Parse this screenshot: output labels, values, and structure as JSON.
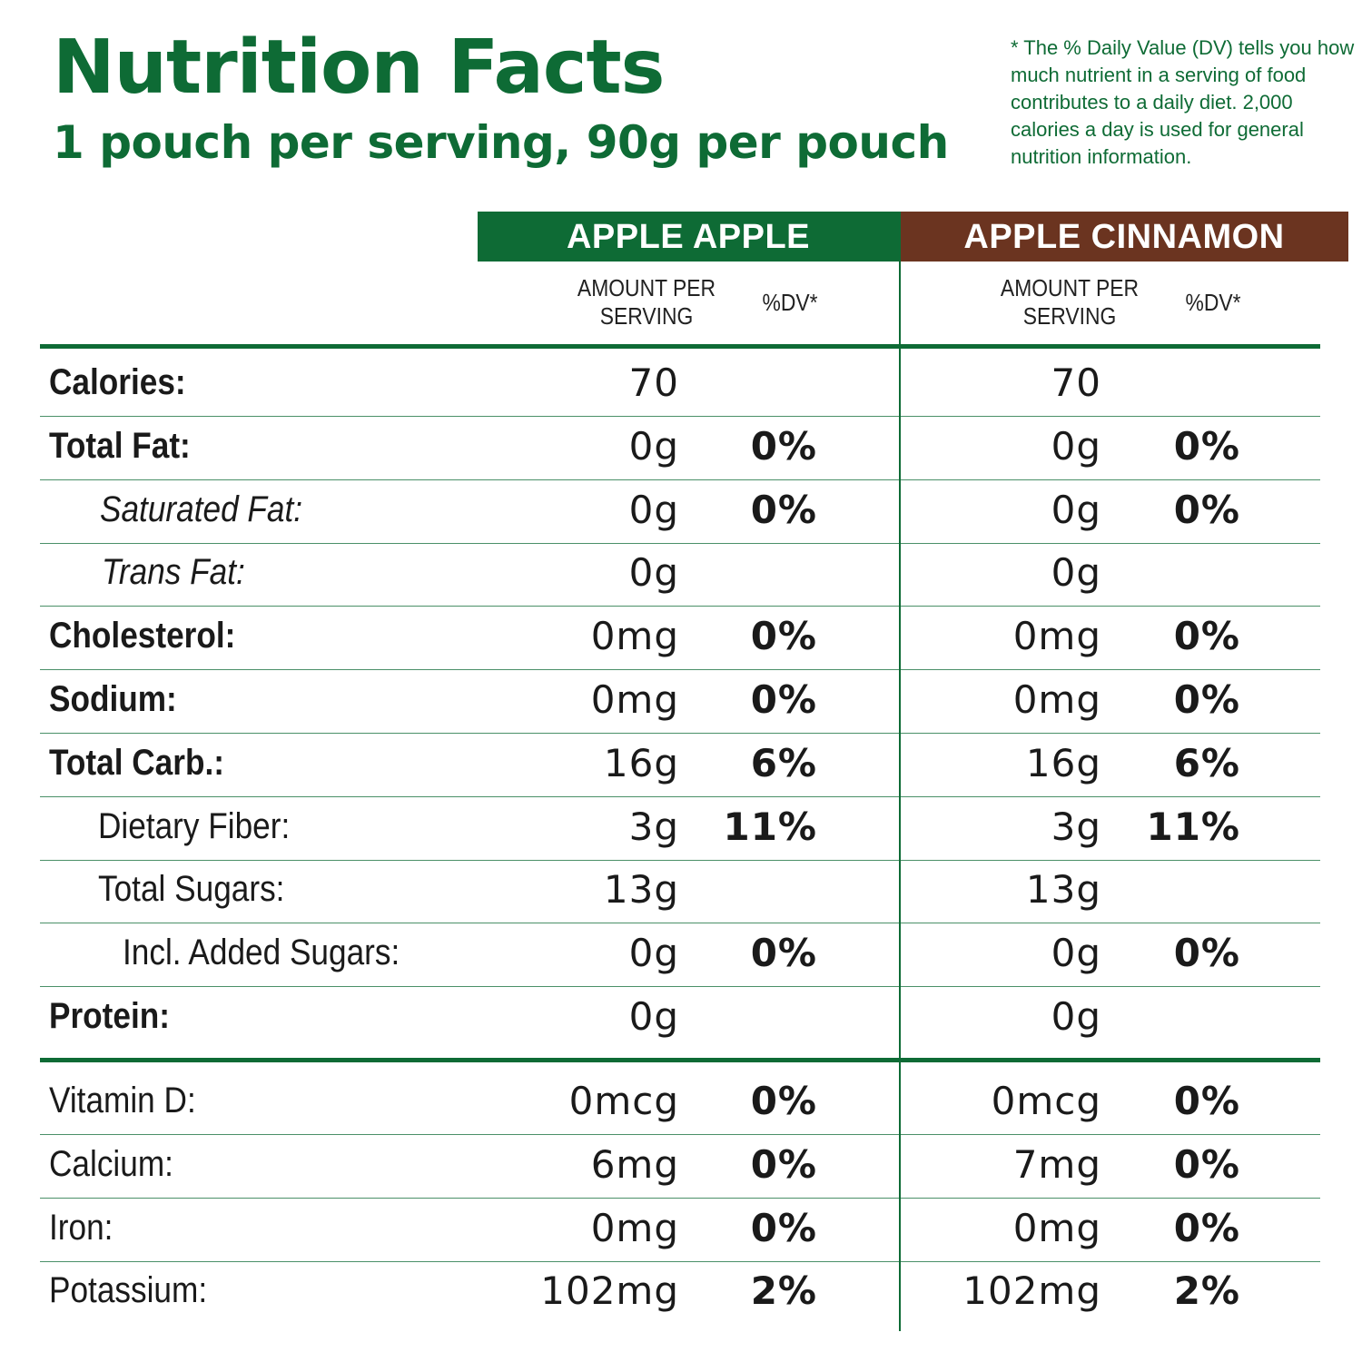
{
  "header": {
    "title": "Nutrition Facts",
    "subtitle": "1 pouch per serving, 90g per pouch",
    "footnote": "* The % Daily Value (DV) tells you how much nutrient in a serving of food contributes to a daily diet. 2,000 calories a day is used for general nutrition information."
  },
  "columns": {
    "apple": {
      "name": "APPLE APPLE",
      "amount_label": "AMOUNT PER SERVING",
      "dv_label": "%DV*",
      "color": "#0e6b35"
    },
    "cinnamon": {
      "name": "APPLE CINNAMON",
      "amount_label": "AMOUNT PER SERVING",
      "dv_label": "%DV*",
      "color": "#6b3420"
    }
  },
  "rows": [
    {
      "label": "Calories:",
      "apple_amount": "70",
      "apple_dv": "",
      "cinnamon_amount": "70",
      "cinnamon_dv": ""
    },
    {
      "label": "Total Fat:",
      "apple_amount": "0g",
      "apple_dv": "0%",
      "cinnamon_amount": "0g",
      "cinnamon_dv": "0%"
    },
    {
      "label": "Saturated Fat:",
      "apple_amount": "0g",
      "apple_dv": "0%",
      "cinnamon_amount": "0g",
      "cinnamon_dv": "0%"
    },
    {
      "label": "Trans Fat:",
      "apple_amount": "0g",
      "apple_dv": "",
      "cinnamon_amount": "0g",
      "cinnamon_dv": ""
    },
    {
      "label": "Cholesterol:",
      "apple_amount": "0mg",
      "apple_dv": "0%",
      "cinnamon_amount": "0mg",
      "cinnamon_dv": "0%"
    },
    {
      "label": "Sodium:",
      "apple_amount": "0mg",
      "apple_dv": "0%",
      "cinnamon_amount": "0mg",
      "cinnamon_dv": "0%"
    },
    {
      "label": "Total Carb.:",
      "apple_amount": "16g",
      "apple_dv": "6%",
      "cinnamon_amount": "16g",
      "cinnamon_dv": "6%"
    },
    {
      "label": "Dietary Fiber:",
      "apple_amount": "3g",
      "apple_dv": "11%",
      "cinnamon_amount": "3g",
      "cinnamon_dv": "11%"
    },
    {
      "label": "Total Sugars:",
      "apple_amount": "13g",
      "apple_dv": "",
      "cinnamon_amount": "13g",
      "cinnamon_dv": ""
    },
    {
      "label": "Incl. Added Sugars:",
      "apple_amount": "0g",
      "apple_dv": "0%",
      "cinnamon_amount": "0g",
      "cinnamon_dv": "0%"
    },
    {
      "label": "Protein:",
      "apple_amount": "0g",
      "apple_dv": "",
      "cinnamon_amount": "0g",
      "cinnamon_dv": ""
    }
  ],
  "vitamins": [
    {
      "label": "Vitamin D:",
      "apple_amount": "0mcg",
      "apple_dv": "0%",
      "cinnamon_amount": "0mcg",
      "cinnamon_dv": "0%"
    },
    {
      "label": "Calcium:",
      "apple_amount": "6mg",
      "apple_dv": "0%",
      "cinnamon_amount": "7mg",
      "cinnamon_dv": "0%"
    },
    {
      "label": "Iron:",
      "apple_amount": "0mg",
      "apple_dv": "0%",
      "cinnamon_amount": "0mg",
      "cinnamon_dv": "0%"
    },
    {
      "label": "Potassium:",
      "apple_amount": "102mg",
      "apple_dv": "2%",
      "cinnamon_amount": "102mg",
      "cinnamon_dv": "2%"
    }
  ]
}
